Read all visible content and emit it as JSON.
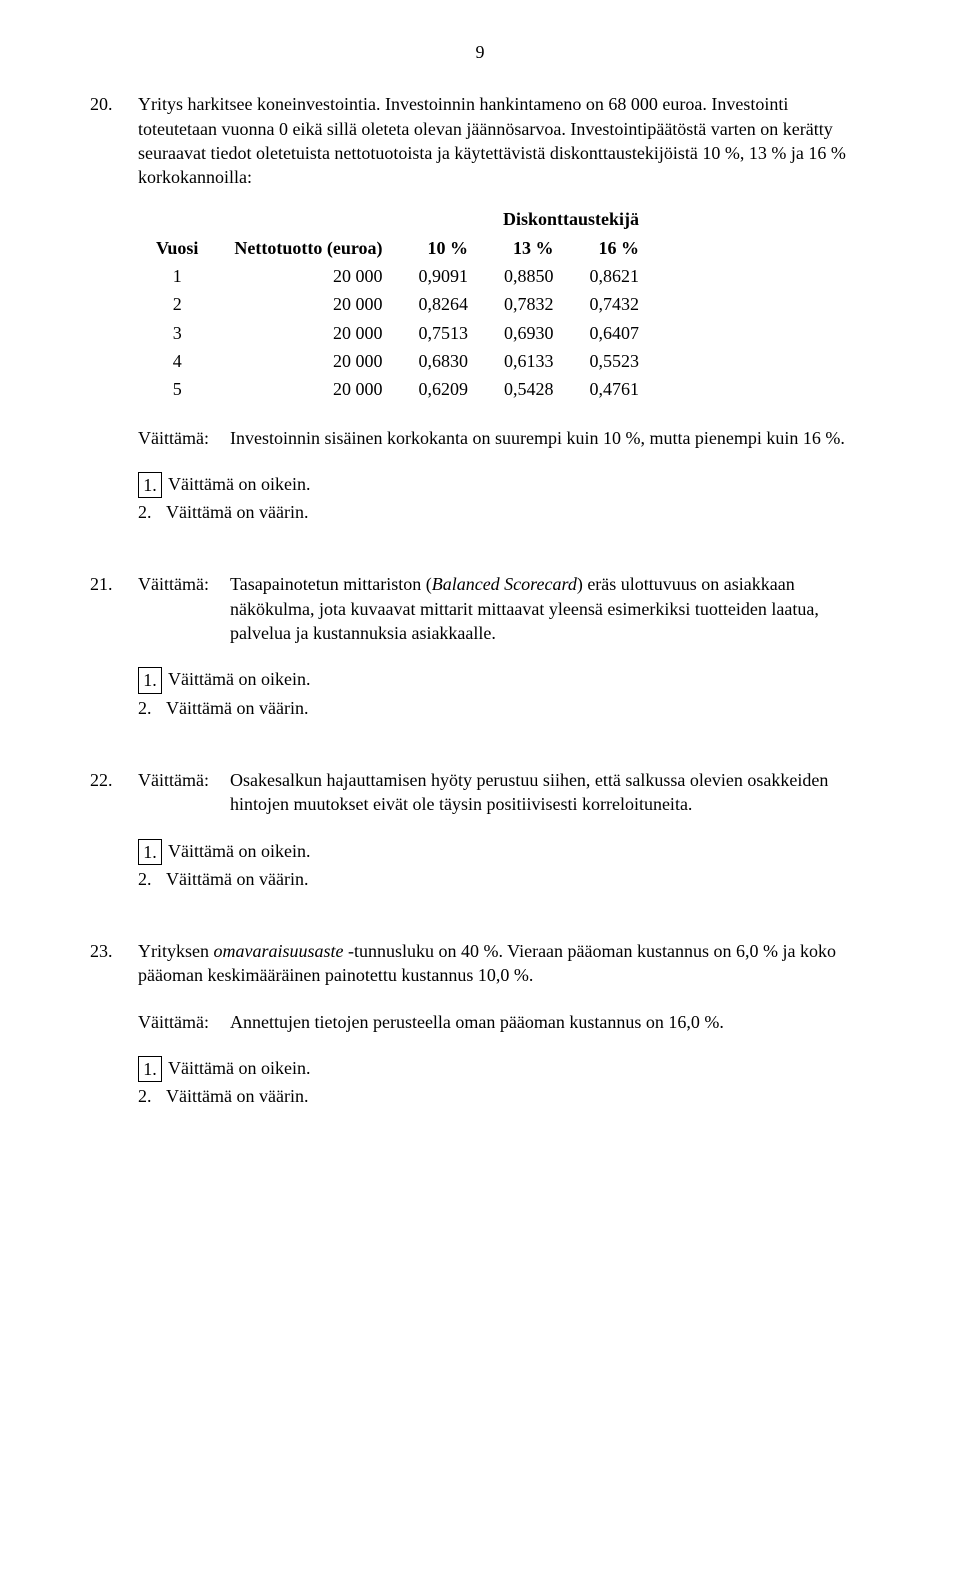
{
  "page_number": "9",
  "q20": {
    "num": "20.",
    "intro": "Yritys harkitsee koneinvestointia. Investoinnin hankintameno on 68 000 euroa. Investointi toteutetaan vuonna 0 eikä sillä oleteta olevan jäännösarvoa. Investointipäätöstä varten on kerätty seuraavat tiedot oletetuista nettotuotoista ja käytettävistä diskonttaustekijöistä 10 %, 13 % ja 16 % korkokannoilla:",
    "table": {
      "disk_header": "Diskonttaustekijä",
      "col_vuosi": "Vuosi",
      "col_netto": "Nettotuotto (euroa)",
      "col_10": "10 %",
      "col_13": "13 %",
      "col_16": "16 %",
      "rows": [
        {
          "v": "1",
          "n": "20 000",
          "a": "0,9091",
          "b": "0,8850",
          "c": "0,8621"
        },
        {
          "v": "2",
          "n": "20 000",
          "a": "0,8264",
          "b": "0,7832",
          "c": "0,7432"
        },
        {
          "v": "3",
          "n": "20 000",
          "a": "0,7513",
          "b": "0,6930",
          "c": "0,6407"
        },
        {
          "v": "4",
          "n": "20 000",
          "a": "0,6830",
          "b": "0,6133",
          "c": "0,5523"
        },
        {
          "v": "5",
          "n": "20 000",
          "a": "0,6209",
          "b": "0,5428",
          "c": "0,4761"
        }
      ]
    },
    "claim_label": "Väittämä:",
    "claim_text": "Investoinnin sisäinen korkokanta on suurempi kuin 10 %, mutta pienempi kuin 16 %.",
    "opt1_num": "1.",
    "opt1_text": "Väittämä on oikein.",
    "opt2_num": "2.",
    "opt2_text": "Väittämä on väärin."
  },
  "q21": {
    "num": "21.",
    "claim_label": "Väittämä:",
    "claim_prefix": "Tasapainotetun mittariston (",
    "claim_italic": "Balanced Scorecard",
    "claim_suffix": ") eräs ulottuvuus on asiakkaan näkökulma, jota kuvaavat mittarit mittaavat yleensä esimerkiksi tuotteiden laatua, palvelua ja kustannuksia asiakkaalle.",
    "opt1_num": "1.",
    "opt1_text": "Väittämä on oikein.",
    "opt2_num": "2.",
    "opt2_text": "Väittämä on väärin."
  },
  "q22": {
    "num": "22.",
    "claim_label": "Väittämä:",
    "claim_text": "Osakesalkun hajauttamisen hyöty perustuu siihen, että salkussa olevien osakkeiden hintojen muutokset eivät ole täysin positiivisesti korreloituneita.",
    "opt1_num": "1.",
    "opt1_text": "Väittämä on oikein.",
    "opt2_num": "2.",
    "opt2_text": "Väittämä on väärin."
  },
  "q23": {
    "num": "23.",
    "intro_prefix": "Yrityksen ",
    "intro_italic": "omavaraisuusaste",
    "intro_suffix": " -tunnusluku on 40 %. Vieraan pääoman kustannus on 6,0 % ja koko pääoman keskimääräinen painotettu kustannus 10,0 %.",
    "claim_label": "Väittämä:",
    "claim_text": "Annettujen tietojen perusteella oman pääoman kustannus on 16,0 %.",
    "opt1_num": "1.",
    "opt1_text": "Väittämä on oikein.",
    "opt2_num": "2.",
    "opt2_text": "Väittämä on väärin."
  }
}
